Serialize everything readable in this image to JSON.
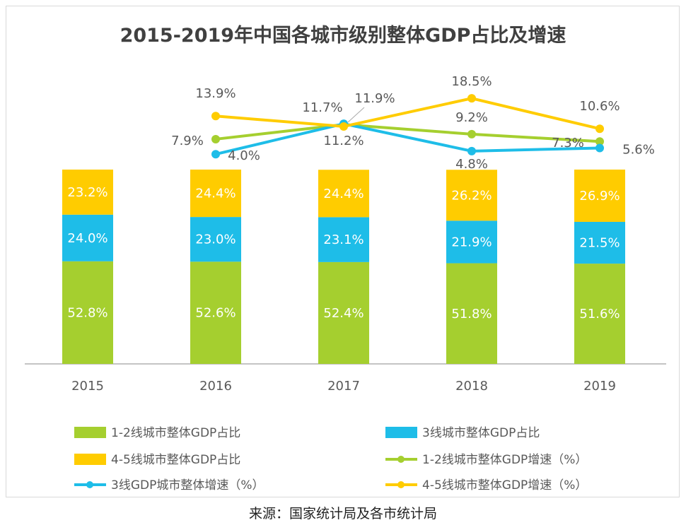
{
  "title": "2015-2019年中国各城市级别整体GDP占比及增速",
  "source": "来源：国家统计局及各市统计局",
  "chart_data": {
    "type": "bar",
    "stacked": true,
    "categories": [
      "2015",
      "2016",
      "2017",
      "2018",
      "2019"
    ],
    "series": [
      {
        "name": "1-2线城市整体GDP占比",
        "kind": "bar",
        "color": "#a5cf2f",
        "values": [
          52.8,
          52.6,
          52.4,
          51.8,
          51.6
        ],
        "labels": [
          "52.8%",
          "52.6%",
          "52.4%",
          "51.8%",
          "51.6%"
        ]
      },
      {
        "name": "3线城市整体GDP占比",
        "kind": "bar",
        "color": "#1ebde8",
        "values": [
          24.0,
          23.0,
          23.1,
          21.9,
          21.5
        ],
        "labels": [
          "24.0%",
          "23.0%",
          "23.1%",
          "21.9%",
          "21.5%"
        ]
      },
      {
        "name": "4-5线城市整体GDP占比",
        "kind": "bar",
        "color": "#ffcc00",
        "values": [
          23.2,
          24.4,
          24.4,
          26.2,
          26.9
        ],
        "labels": [
          "23.2%",
          "24.4%",
          "24.4%",
          "26.2%",
          "26.9%"
        ]
      },
      {
        "name": "1-2线城市整体GDP增速（%）",
        "kind": "line",
        "color": "#a5cf2f",
        "values": [
          null,
          7.9,
          11.7,
          9.2,
          7.3
        ],
        "labels": [
          "",
          "7.9%",
          "11.7%",
          "9.2%",
          "7.3%"
        ]
      },
      {
        "name": "3线GDP城市整体增速（%）",
        "kind": "line",
        "color": "#1ebde8",
        "values": [
          null,
          4.0,
          11.9,
          4.8,
          5.6
        ],
        "labels": [
          "",
          "4.0%",
          "11.9%",
          "4.8%",
          "5.6%"
        ]
      },
      {
        "name": "4-5线城市整体GDP增速（%）",
        "kind": "line",
        "color": "#ffcc00",
        "values": [
          null,
          13.9,
          11.2,
          18.5,
          10.6
        ],
        "labels": [
          "",
          "13.9%",
          "11.2%",
          "18.5%",
          "10.6%"
        ]
      }
    ],
    "legend_position": "bottom",
    "grid": false
  }
}
